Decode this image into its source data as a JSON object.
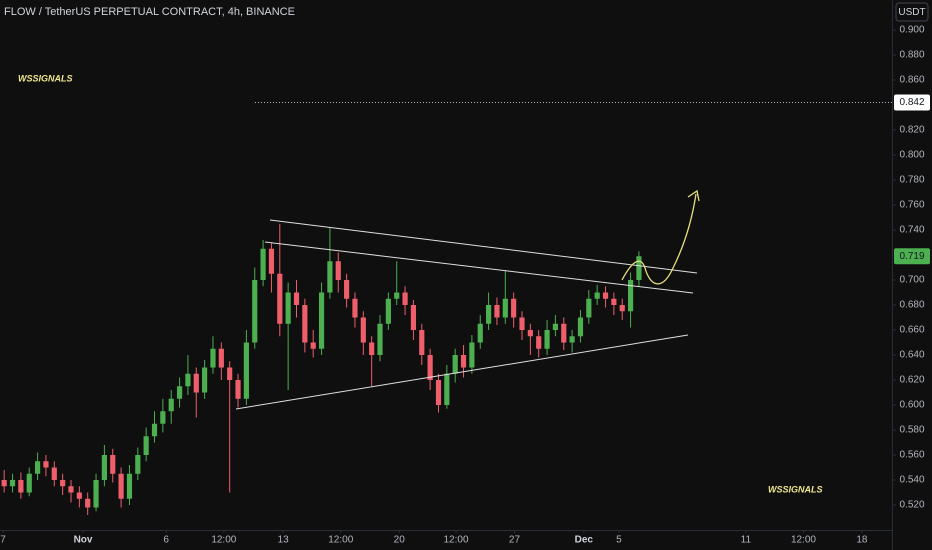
{
  "chart_data": {
    "type": "candlestick",
    "title": "FLOW / TetherUS PERPETUAL CONTRACT, 4h, BINANCE",
    "currency": "USDT",
    "watermark": "WSSIGNALS",
    "up_color": "#4caf50",
    "down_color": "#ef5f6b",
    "open": [
      0.54,
      0.535,
      0.54,
      0.53,
      0.545,
      0.555,
      0.55,
      0.54,
      0.535,
      0.53,
      0.525,
      0.518,
      0.54,
      0.56,
      0.545,
      0.525,
      0.545,
      0.56,
      0.575,
      0.585,
      0.595,
      0.605,
      0.615,
      0.625,
      0.61,
      0.63,
      0.645,
      0.63,
      0.62,
      0.605,
      0.65,
      0.7,
      0.725,
      0.705,
      0.665,
      0.69,
      0.68,
      0.65,
      0.645,
      0.69,
      0.715,
      0.7,
      0.685,
      0.67,
      0.65,
      0.64,
      0.665,
      0.685,
      0.69,
      0.68,
      0.66,
      0.64,
      0.62,
      0.6,
      0.625,
      0.64,
      0.63,
      0.65,
      0.665,
      0.68,
      0.67,
      0.685,
      0.67,
      0.66,
      0.655,
      0.645,
      0.66,
      0.665,
      0.65,
      0.655,
      0.67,
      0.685,
      0.69,
      0.685,
      0.68,
      0.675,
      0.7
    ],
    "high": [
      0.548,
      0.545,
      0.546,
      0.55,
      0.562,
      0.56,
      0.555,
      0.545,
      0.54,
      0.535,
      0.53,
      0.545,
      0.568,
      0.565,
      0.55,
      0.552,
      0.566,
      0.582,
      0.595,
      0.605,
      0.612,
      0.622,
      0.64,
      0.63,
      0.636,
      0.655,
      0.65,
      0.635,
      0.625,
      0.66,
      0.71,
      0.732,
      0.73,
      0.745,
      0.698,
      0.7,
      0.685,
      0.66,
      0.698,
      0.742,
      0.722,
      0.705,
      0.69,
      0.675,
      0.655,
      0.672,
      0.69,
      0.715,
      0.695,
      0.684,
      0.665,
      0.645,
      0.625,
      0.632,
      0.645,
      0.648,
      0.656,
      0.672,
      0.69,
      0.686,
      0.708,
      0.69,
      0.675,
      0.665,
      0.66,
      0.668,
      0.672,
      0.67,
      0.66,
      0.676,
      0.692,
      0.696,
      0.695,
      0.69,
      0.685,
      0.706,
      0.723
    ],
    "low": [
      0.53,
      0.53,
      0.525,
      0.527,
      0.54,
      0.543,
      0.535,
      0.528,
      0.522,
      0.518,
      0.512,
      0.515,
      0.535,
      0.538,
      0.518,
      0.52,
      0.54,
      0.555,
      0.57,
      0.578,
      0.585,
      0.598,
      0.608,
      0.59,
      0.605,
      0.625,
      0.62,
      0.53,
      0.598,
      0.6,
      0.645,
      0.695,
      0.69,
      0.655,
      0.612,
      0.67,
      0.642,
      0.638,
      0.64,
      0.685,
      0.69,
      0.678,
      0.662,
      0.64,
      0.615,
      0.635,
      0.66,
      0.68,
      0.672,
      0.652,
      0.632,
      0.612,
      0.594,
      0.597,
      0.618,
      0.622,
      0.625,
      0.645,
      0.66,
      0.664,
      0.665,
      0.662,
      0.652,
      0.64,
      0.638,
      0.64,
      0.655,
      0.644,
      0.642,
      0.65,
      0.665,
      0.68,
      0.678,
      0.672,
      0.668,
      0.662,
      0.695
    ],
    "close": [
      0.535,
      0.54,
      0.53,
      0.545,
      0.555,
      0.55,
      0.54,
      0.535,
      0.53,
      0.525,
      0.518,
      0.54,
      0.56,
      0.545,
      0.525,
      0.545,
      0.56,
      0.575,
      0.585,
      0.595,
      0.605,
      0.615,
      0.625,
      0.61,
      0.63,
      0.645,
      0.63,
      0.62,
      0.605,
      0.65,
      0.7,
      0.725,
      0.705,
      0.665,
      0.69,
      0.68,
      0.65,
      0.645,
      0.69,
      0.715,
      0.7,
      0.685,
      0.67,
      0.65,
      0.64,
      0.665,
      0.685,
      0.69,
      0.68,
      0.66,
      0.64,
      0.62,
      0.6,
      0.625,
      0.64,
      0.63,
      0.65,
      0.665,
      0.68,
      0.67,
      0.685,
      0.67,
      0.66,
      0.655,
      0.645,
      0.66,
      0.665,
      0.65,
      0.655,
      0.67,
      0.685,
      0.69,
      0.685,
      0.68,
      0.675,
      0.7,
      0.719
    ],
    "xlim": [
      -0.5,
      106.3
    ],
    "xticks": [
      {
        "value": -0.14,
        "label": "7"
      },
      {
        "value": 9.44,
        "label": "Nov"
      },
      {
        "value": 19.4,
        "label": "6"
      },
      {
        "value": 26.3,
        "label": "12:00"
      },
      {
        "value": 33.4,
        "label": "13"
      },
      {
        "value": 40.3,
        "label": "12:00"
      },
      {
        "value": 47.3,
        "label": "20"
      },
      {
        "value": 54.1,
        "label": "12:00"
      },
      {
        "value": 61.1,
        "label": "27"
      },
      {
        "value": 69.4,
        "label": "Dec"
      },
      {
        "value": 73.6,
        "label": "5"
      },
      {
        "value": 88.8,
        "label": "11"
      },
      {
        "value": 95.7,
        "label": "12:00"
      },
      {
        "value": 102.7,
        "label": "18"
      }
    ],
    "ylim": [
      0.5,
      0.924
    ],
    "yticks": [
      {
        "value": 0.52,
        "label": "0.520"
      },
      {
        "value": 0.54,
        "label": "0.540"
      },
      {
        "value": 0.56,
        "label": "0.560"
      },
      {
        "value": 0.58,
        "label": "0.580"
      },
      {
        "value": 0.6,
        "label": "0.600"
      },
      {
        "value": 0.62,
        "label": "0.620"
      },
      {
        "value": 0.64,
        "label": "0.640"
      },
      {
        "value": 0.66,
        "label": "0.660"
      },
      {
        "value": 0.68,
        "label": "0.680"
      },
      {
        "value": 0.7,
        "label": "0.700"
      },
      {
        "value": 0.74,
        "label": "0.740"
      },
      {
        "value": 0.76,
        "label": "0.760"
      },
      {
        "value": 0.78,
        "label": "0.780"
      },
      {
        "value": 0.8,
        "label": "0.800"
      },
      {
        "value": 0.82,
        "label": "0.820"
      },
      {
        "value": 0.86,
        "label": "0.860"
      },
      {
        "value": 0.88,
        "label": "0.880"
      },
      {
        "value": 0.9,
        "label": "0.900"
      }
    ],
    "price_line": 0.842
  }
}
